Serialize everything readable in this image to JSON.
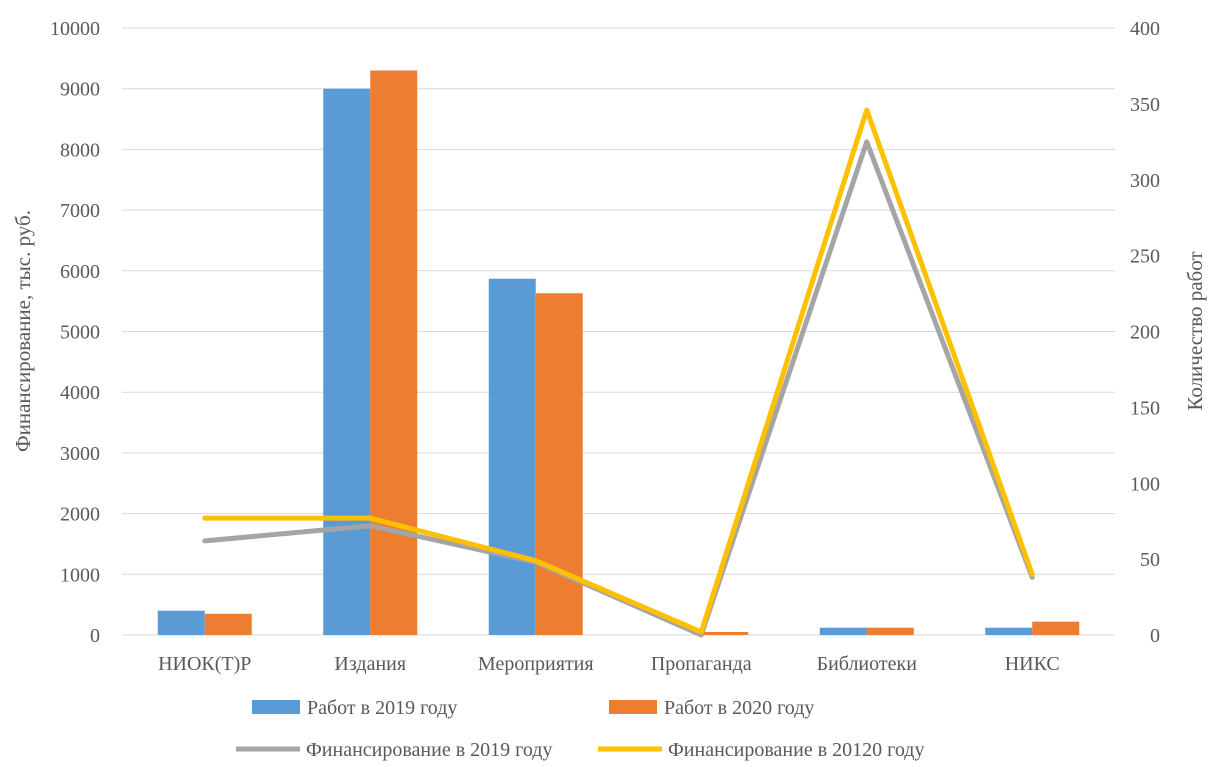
{
  "chart_data": {
    "type": "bar",
    "categories": [
      "НИОК(Т)Р",
      "Издания",
      "Мероприятия",
      "Пропаганда",
      "Библиотеки",
      "НИКС"
    ],
    "series": [
      {
        "name": "Работ в 2019 году",
        "type": "bar",
        "axis": "left",
        "color": "#5B9BD5",
        "values": [
          400,
          9000,
          5870,
          0,
          120,
          120
        ]
      },
      {
        "name": "Работ в 2020 году",
        "type": "bar",
        "axis": "left",
        "color": "#ED7D31",
        "values": [
          350,
          9300,
          5630,
          50,
          120,
          220
        ]
      },
      {
        "name": "Финансирование в 2019 году",
        "type": "line",
        "axis": "right",
        "color": "#A5A5A5",
        "values": [
          62,
          72,
          48,
          0,
          325,
          38
        ]
      },
      {
        "name": "Финансирование в 20120 году",
        "type": "line",
        "axis": "right",
        "color": "#FFC000",
        "values": [
          77,
          77,
          49,
          2,
          346,
          40
        ]
      }
    ],
    "ylabel": "Финансирование, тыс. руб.",
    "y2label": "Количество работ",
    "ylim": [
      0,
      10000
    ],
    "y2lim": [
      0,
      400
    ],
    "yticks": [
      "0",
      "1000",
      "2000",
      "3000",
      "4000",
      "5000",
      "6000",
      "7000",
      "8000",
      "9000",
      "10000"
    ],
    "y2ticks": [
      "0",
      "50",
      "100",
      "150",
      "200",
      "250",
      "300",
      "350",
      "400"
    ],
    "grid": true,
    "legend": "bottom"
  }
}
